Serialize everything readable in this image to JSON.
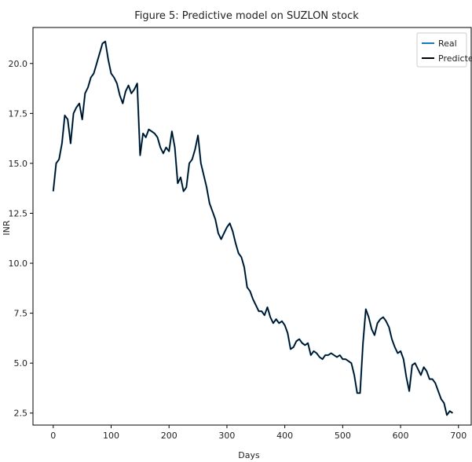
{
  "chart_data": {
    "type": "line",
    "title": "Figure 5: Predictive model on SUZLON stock",
    "xlabel": "Days",
    "ylabel": "INR",
    "xlim": [
      -35,
      722
    ],
    "ylim": [
      1.9,
      21.8
    ],
    "xticks": [
      0,
      100,
      200,
      300,
      400,
      500,
      600,
      700
    ],
    "yticks": [
      2.5,
      5.0,
      7.5,
      10.0,
      12.5,
      15.0,
      17.5,
      20.0
    ],
    "ytick_labels": [
      "2.5",
      "5.0",
      "7.5",
      "10.0",
      "12.5",
      "15.0",
      "17.5",
      "20.0"
    ],
    "grid": false,
    "legend_position": "top-right",
    "series": [
      {
        "name": "Real",
        "color": "#1f77b4",
        "x": [
          0,
          5,
          10,
          15,
          20,
          25,
          30,
          35,
          40,
          45,
          50,
          55,
          60,
          65,
          70,
          75,
          80,
          85,
          90,
          95,
          100,
          105,
          110,
          115,
          120,
          125,
          130,
          135,
          140,
          145,
          150,
          155,
          160,
          165,
          170,
          175,
          180,
          185,
          190,
          195,
          200,
          205,
          210,
          215,
          220,
          225,
          230,
          235,
          240,
          245,
          250,
          255,
          260,
          265,
          270,
          275,
          280,
          285,
          290,
          295,
          300,
          305,
          310,
          315,
          320,
          325,
          330,
          335,
          340,
          345,
          350,
          355,
          360,
          365,
          370,
          375,
          380,
          385,
          390,
          395,
          400,
          405,
          410,
          415,
          420,
          425,
          430,
          435,
          440,
          445,
          450,
          455,
          460,
          465,
          470,
          475,
          480,
          485,
          490,
          495,
          500,
          505,
          510,
          515,
          520,
          525,
          530,
          535,
          540,
          545,
          550,
          555,
          560,
          565,
          570,
          575,
          580,
          585,
          590,
          595,
          600,
          605,
          610,
          615,
          620,
          625,
          630,
          635,
          640,
          645,
          650,
          655,
          660,
          665,
          670,
          675,
          680,
          685,
          690
        ],
        "y": [
          13.6,
          15.0,
          15.2,
          16.0,
          17.4,
          17.2,
          16.0,
          17.5,
          17.8,
          18.0,
          17.2,
          18.5,
          18.8,
          19.3,
          19.5,
          20.0,
          20.5,
          21.0,
          21.1,
          20.2,
          19.5,
          19.3,
          19.0,
          18.4,
          18.0,
          18.6,
          18.9,
          18.5,
          18.7,
          19.0,
          15.4,
          16.5,
          16.3,
          16.7,
          16.6,
          16.5,
          16.3,
          15.8,
          15.5,
          15.8,
          15.6,
          16.6,
          15.8,
          14.0,
          14.3,
          13.6,
          13.8,
          15.0,
          15.2,
          15.7,
          16.4,
          15.0,
          14.4,
          13.8,
          13.0,
          12.6,
          12.2,
          11.5,
          11.2,
          11.5,
          11.8,
          12.0,
          11.6,
          11.0,
          10.5,
          10.3,
          9.8,
          8.8,
          8.6,
          8.2,
          7.9,
          7.6,
          7.6,
          7.4,
          7.8,
          7.3,
          7.0,
          7.2,
          7.0,
          7.1,
          6.9,
          6.5,
          5.7,
          5.8,
          6.1,
          6.2,
          6.0,
          5.9,
          6.0,
          5.4,
          5.6,
          5.5,
          5.3,
          5.2,
          5.4,
          5.4,
          5.5,
          5.4,
          5.3,
          5.4,
          5.2,
          5.2,
          5.1,
          5.0,
          4.4,
          3.5,
          3.5,
          6.0,
          7.7,
          7.3,
          6.7,
          6.4,
          7.0,
          7.2,
          7.3,
          7.1,
          6.8,
          6.2,
          5.8,
          5.5,
          5.6,
          5.2,
          4.3,
          3.6,
          4.9,
          5.0,
          4.7,
          4.4,
          4.8,
          4.6,
          4.2,
          4.2,
          4.0,
          3.6,
          3.2,
          3.0,
          2.4,
          2.6,
          2.5
        ]
      },
      {
        "name": "Predicted",
        "color": "#000000",
        "x": [
          0,
          5,
          10,
          15,
          20,
          25,
          30,
          35,
          40,
          45,
          50,
          55,
          60,
          65,
          70,
          75,
          80,
          85,
          90,
          95,
          100,
          105,
          110,
          115,
          120,
          125,
          130,
          135,
          140,
          145,
          150,
          155,
          160,
          165,
          170,
          175,
          180,
          185,
          190,
          195,
          200,
          205,
          210,
          215,
          220,
          225,
          230,
          235,
          240,
          245,
          250,
          255,
          260,
          265,
          270,
          275,
          280,
          285,
          290,
          295,
          300,
          305,
          310,
          315,
          320,
          325,
          330,
          335,
          340,
          345,
          350,
          355,
          360,
          365,
          370,
          375,
          380,
          385,
          390,
          395,
          400,
          405,
          410,
          415,
          420,
          425,
          430,
          435,
          440,
          445,
          450,
          455,
          460,
          465,
          470,
          475,
          480,
          485,
          490,
          495,
          500,
          505,
          510,
          515,
          520,
          525,
          530,
          535,
          540,
          545,
          550,
          555,
          560,
          565,
          570,
          575,
          580,
          585,
          590,
          595,
          600,
          605,
          610,
          615,
          620,
          625,
          630,
          635,
          640,
          645,
          650,
          655,
          660,
          665,
          670,
          675,
          680,
          685,
          690
        ],
        "y": [
          13.6,
          15.0,
          15.2,
          16.0,
          17.4,
          17.2,
          16.0,
          17.5,
          17.8,
          18.0,
          17.2,
          18.5,
          18.8,
          19.3,
          19.5,
          20.0,
          20.5,
          21.0,
          21.1,
          20.2,
          19.5,
          19.3,
          19.0,
          18.4,
          18.0,
          18.6,
          18.9,
          18.5,
          18.7,
          19.0,
          15.4,
          16.5,
          16.3,
          16.7,
          16.6,
          16.5,
          16.3,
          15.8,
          15.5,
          15.8,
          15.6,
          16.6,
          15.8,
          14.0,
          14.3,
          13.6,
          13.8,
          15.0,
          15.2,
          15.7,
          16.4,
          15.0,
          14.4,
          13.8,
          13.0,
          12.6,
          12.2,
          11.5,
          11.2,
          11.5,
          11.8,
          12.0,
          11.6,
          11.0,
          10.5,
          10.3,
          9.8,
          8.8,
          8.6,
          8.2,
          7.9,
          7.6,
          7.6,
          7.4,
          7.8,
          7.3,
          7.0,
          7.2,
          7.0,
          7.1,
          6.9,
          6.5,
          5.7,
          5.8,
          6.1,
          6.2,
          6.0,
          5.9,
          6.0,
          5.4,
          5.6,
          5.5,
          5.3,
          5.2,
          5.4,
          5.4,
          5.5,
          5.4,
          5.3,
          5.4,
          5.2,
          5.2,
          5.1,
          5.0,
          4.4,
          3.5,
          3.5,
          6.0,
          7.7,
          7.3,
          6.7,
          6.4,
          7.0,
          7.2,
          7.3,
          7.1,
          6.8,
          6.2,
          5.8,
          5.5,
          5.6,
          5.2,
          4.3,
          3.6,
          4.9,
          5.0,
          4.7,
          4.4,
          4.8,
          4.6,
          4.2,
          4.2,
          4.0,
          3.6,
          3.2,
          3.0,
          2.4,
          2.6,
          2.5
        ]
      }
    ]
  }
}
